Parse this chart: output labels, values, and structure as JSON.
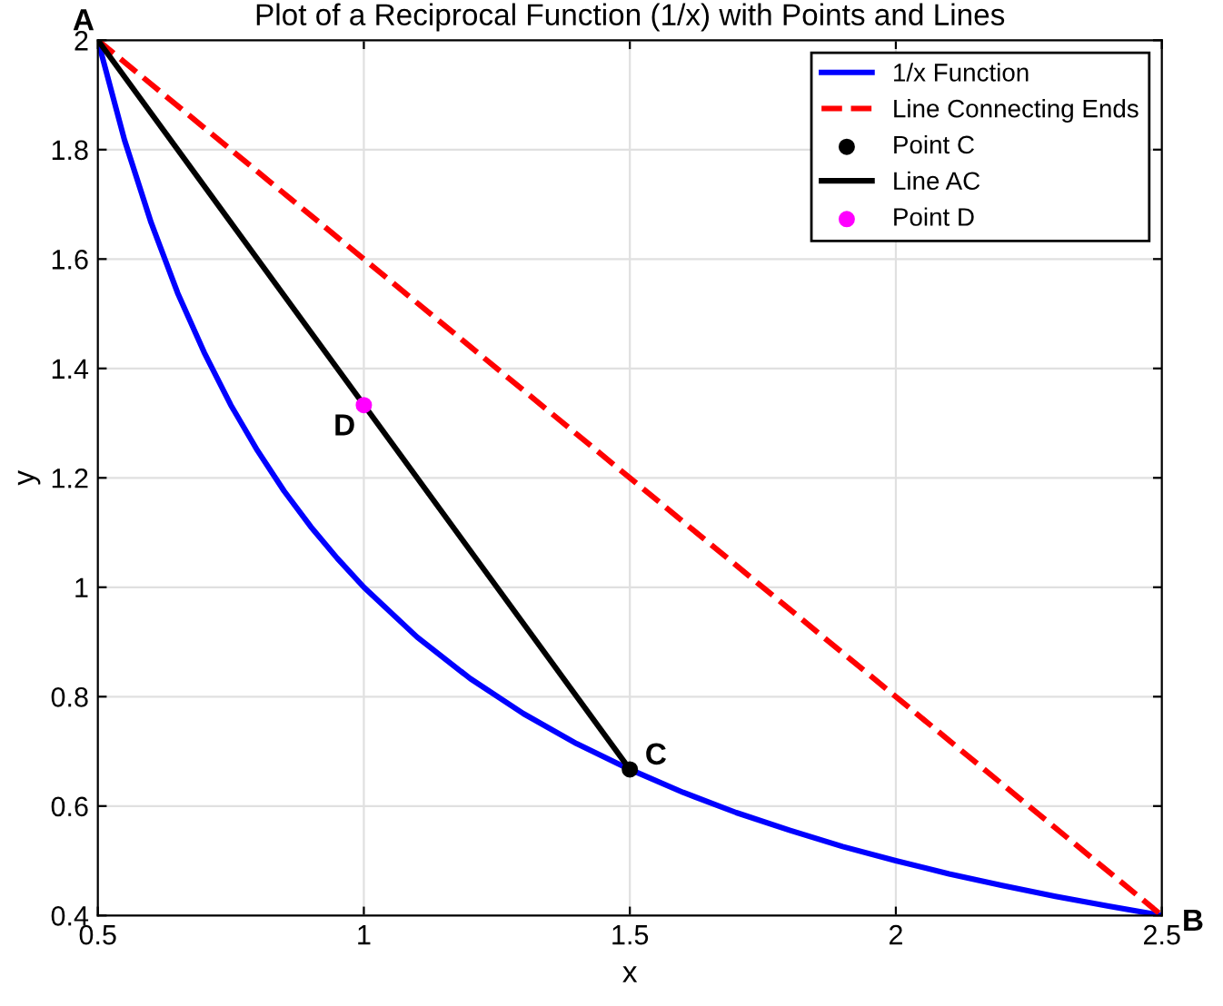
{
  "chart_data": {
    "type": "line",
    "title": "Plot of a Reciprocal Function (1/x) with Points and Lines",
    "xlabel": "x",
    "ylabel": "y",
    "series": [
      {
        "name": "1/x Function",
        "color": "#0000ff",
        "line_style": "solid",
        "x": [
          0.5,
          0.55,
          0.6,
          0.65,
          0.7,
          0.75,
          0.8,
          0.85,
          0.9,
          0.95,
          1.0,
          1.1,
          1.2,
          1.3,
          1.4,
          1.5,
          1.6,
          1.7,
          1.8,
          1.9,
          2.0,
          2.1,
          2.2,
          2.3,
          2.4,
          2.5
        ],
        "values": [
          2.0,
          1.818,
          1.667,
          1.538,
          1.429,
          1.333,
          1.25,
          1.176,
          1.111,
          1.053,
          1.0,
          0.909,
          0.833,
          0.769,
          0.714,
          0.667,
          0.625,
          0.588,
          0.556,
          0.526,
          0.5,
          0.476,
          0.455,
          0.435,
          0.417,
          0.4
        ]
      },
      {
        "name": "Line Connecting Ends",
        "color": "#ff0000",
        "line_style": "dashed",
        "x": [
          0.5,
          2.5
        ],
        "values": [
          2.0,
          0.4
        ]
      },
      {
        "name": "Point C",
        "color": "#000000",
        "type": "scatter",
        "marker": "circle",
        "x": [
          1.5
        ],
        "values": [
          0.667
        ]
      },
      {
        "name": "Line AC",
        "color": "#000000",
        "line_style": "solid",
        "x": [
          0.5,
          1.5
        ],
        "values": [
          2.0,
          0.667
        ]
      },
      {
        "name": "Point D",
        "color": "#ff00ff",
        "type": "scatter",
        "marker": "circle",
        "x": [
          1.0
        ],
        "values": [
          1.333
        ]
      }
    ],
    "annotations": [
      {
        "text": "A",
        "x": 0.5,
        "y": 2.0
      },
      {
        "text": "B",
        "x": 2.5,
        "y": 0.4
      },
      {
        "text": "C",
        "x": 1.5,
        "y": 0.667
      },
      {
        "text": "D",
        "x": 1.0,
        "y": 1.333
      }
    ],
    "xlim": [
      0.5,
      2.5
    ],
    "ylim": [
      0.4,
      2.0
    ],
    "xticks": [
      0.5,
      1,
      1.5,
      2,
      2.5
    ],
    "yticks": [
      0.4,
      0.6,
      0.8,
      1,
      1.2,
      1.4,
      1.6,
      1.8,
      2
    ],
    "grid": true,
    "legend": "top right"
  }
}
